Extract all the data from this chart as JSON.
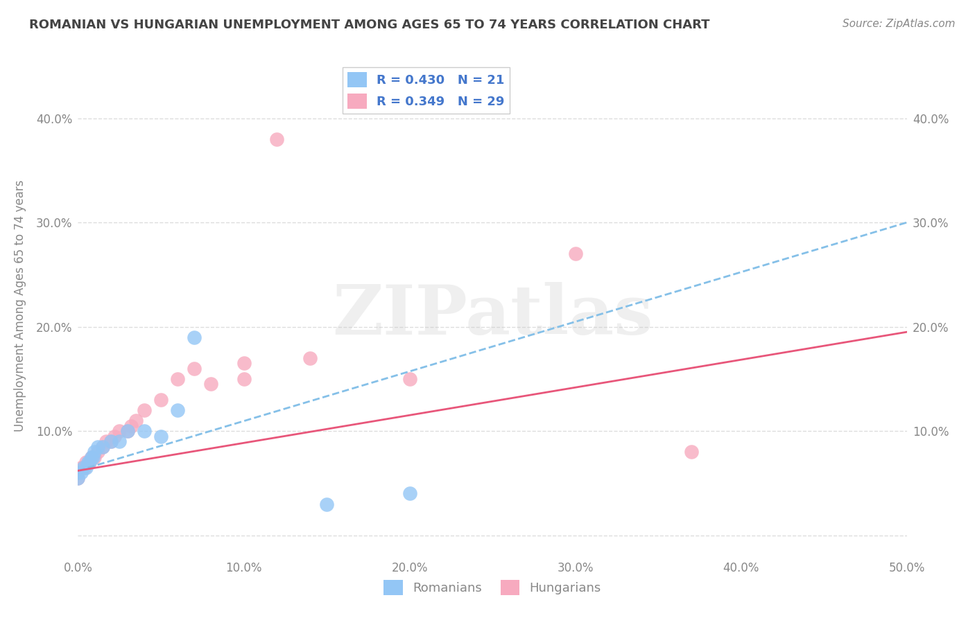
{
  "title": "ROMANIAN VS HUNGARIAN UNEMPLOYMENT AMONG AGES 65 TO 74 YEARS CORRELATION CHART",
  "source_text": "Source: ZipAtlas.com",
  "ylabel": "Unemployment Among Ages 65 to 74 years",
  "xlim": [
    0.0,
    0.5
  ],
  "ylim": [
    -0.02,
    0.46
  ],
  "xticks": [
    0.0,
    0.1,
    0.2,
    0.3,
    0.4,
    0.5
  ],
  "yticks": [
    0.0,
    0.1,
    0.2,
    0.3,
    0.4
  ],
  "xtick_labels": [
    "0.0%",
    "10.0%",
    "20.0%",
    "30.0%",
    "40.0%",
    "50.0%"
  ],
  "ytick_labels": [
    "",
    "10.0%",
    "20.0%",
    "30.0%",
    "40.0%"
  ],
  "watermark": "ZIPatlas",
  "legend_r1": "R = 0.430   N = 21",
  "legend_r2": "R = 0.349   N = 29",
  "romanians_x": [
    0.0,
    0.0,
    0.002,
    0.003,
    0.005,
    0.006,
    0.007,
    0.008,
    0.009,
    0.01,
    0.012,
    0.015,
    0.02,
    0.025,
    0.03,
    0.04,
    0.05,
    0.06,
    0.07,
    0.15,
    0.2
  ],
  "romanians_y": [
    0.055,
    0.06,
    0.06,
    0.065,
    0.065,
    0.07,
    0.07,
    0.075,
    0.075,
    0.08,
    0.085,
    0.085,
    0.09,
    0.09,
    0.1,
    0.1,
    0.095,
    0.12,
    0.19,
    0.03,
    0.04
  ],
  "hungarians_x": [
    0.0,
    0.0,
    0.002,
    0.004,
    0.005,
    0.007,
    0.008,
    0.01,
    0.012,
    0.015,
    0.017,
    0.02,
    0.022,
    0.025,
    0.03,
    0.032,
    0.035,
    0.04,
    0.05,
    0.06,
    0.07,
    0.08,
    0.1,
    0.1,
    0.12,
    0.14,
    0.2,
    0.3,
    0.37
  ],
  "hungarians_y": [
    0.055,
    0.06,
    0.065,
    0.065,
    0.07,
    0.07,
    0.075,
    0.075,
    0.08,
    0.085,
    0.09,
    0.09,
    0.095,
    0.1,
    0.1,
    0.105,
    0.11,
    0.12,
    0.13,
    0.15,
    0.16,
    0.145,
    0.15,
    0.165,
    0.38,
    0.17,
    0.15,
    0.27,
    0.08
  ],
  "blue_scatter_color": "#93C6F5",
  "pink_scatter_color": "#F7AABF",
  "blue_line_color": "#85C0E8",
  "pink_line_color": "#E8567A",
  "title_color": "#444444",
  "source_color": "#888888",
  "grid_color": "#DDDDDD",
  "tick_color": "#888888",
  "watermark_color": "#CCCCCC",
  "legend_blue_color": "#93C6F5",
  "legend_pink_color": "#F7AABF",
  "background_color": "#FFFFFF",
  "blue_trendline_start_y": 0.062,
  "blue_trendline_end_y": 0.3,
  "pink_trendline_start_y": 0.062,
  "pink_trendline_end_y": 0.195
}
